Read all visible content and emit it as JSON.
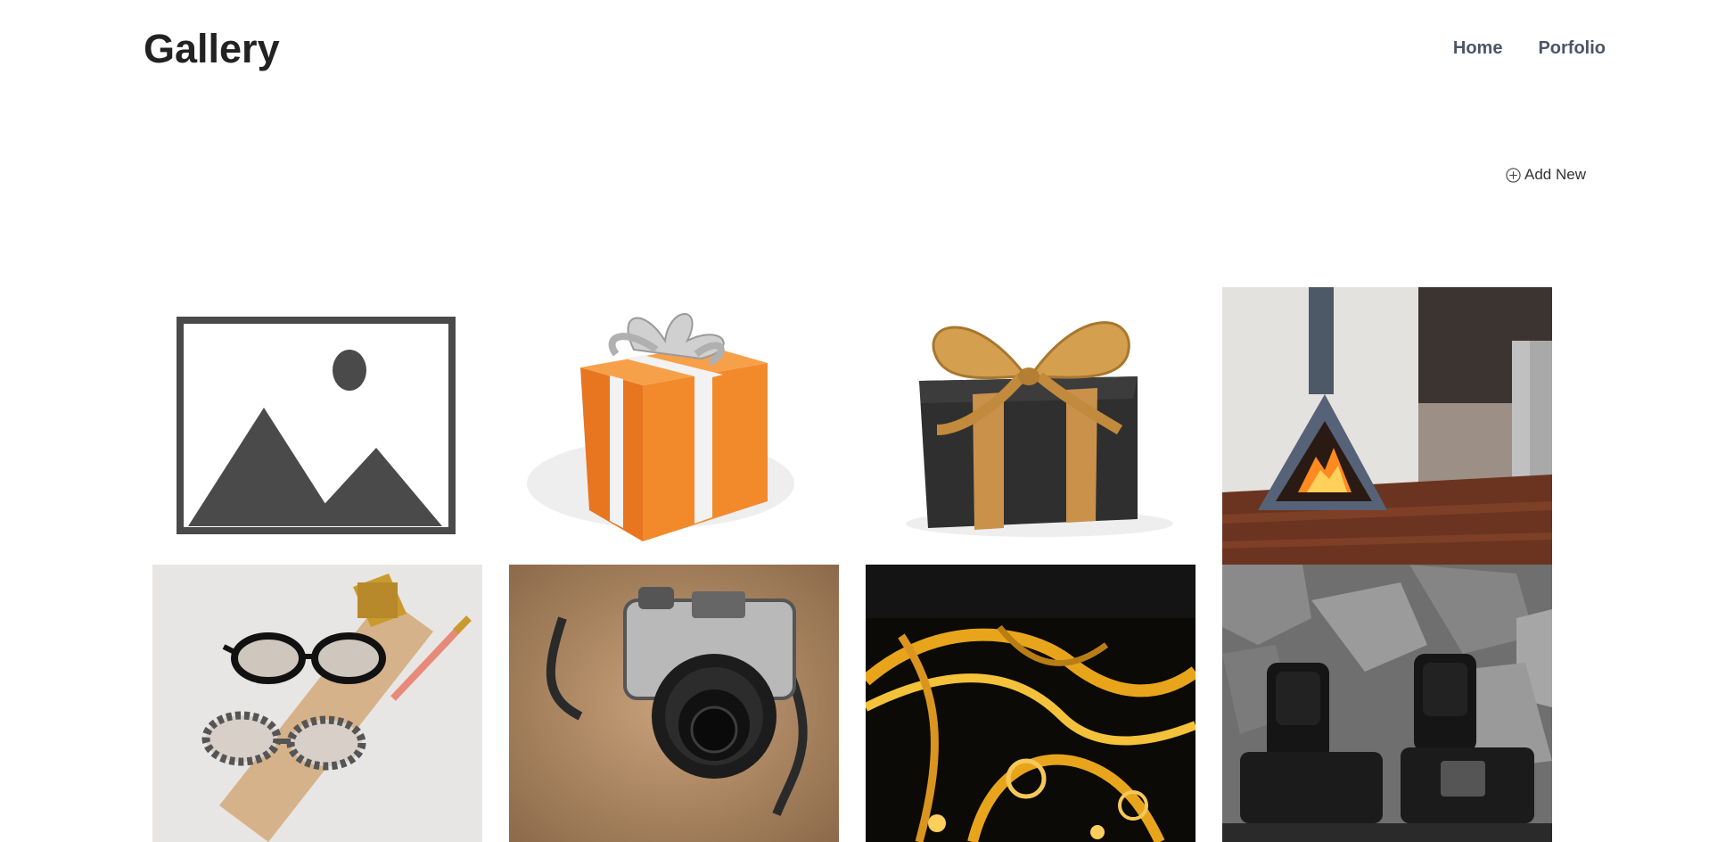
{
  "header": {
    "title": "Gallery",
    "nav": [
      {
        "label": "Home"
      },
      {
        "label": "Porfolio"
      }
    ]
  },
  "toolbar": {
    "add_new_label": "Add New",
    "add_new_icon": "plus-circle-icon"
  },
  "gallery": {
    "images": [
      {
        "subject": "placeholder-image-icon"
      },
      {
        "subject": "orange-gift-box"
      },
      {
        "subject": "black-gift-box-gold-ribbon"
      },
      {
        "subject": "wall-fireplace-kitchen"
      },
      {
        "subject": "glasses-on-clipboard"
      },
      {
        "subject": "camera-on-wood"
      },
      {
        "subject": "city-highway-night"
      },
      {
        "subject": "cameras-on-rocks"
      }
    ]
  },
  "colors": {
    "nav_text": "#4b5566",
    "title_text": "#222222",
    "background": "#ffffff"
  }
}
